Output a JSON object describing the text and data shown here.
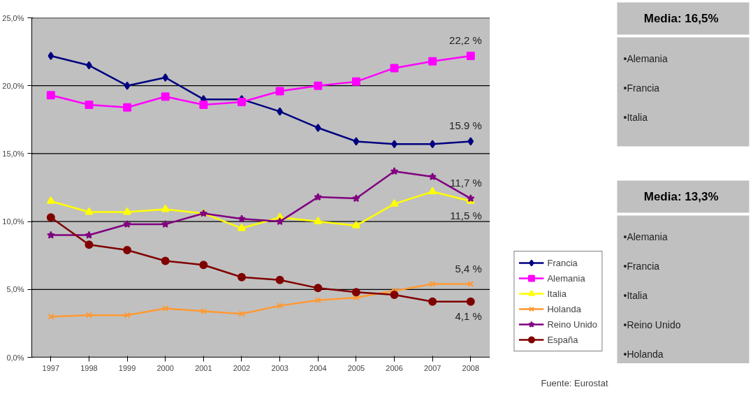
{
  "chart_data": [
    {
      "type": "line",
      "categories": [
        "1997",
        "1998",
        "1999",
        "2000",
        "2001",
        "2002",
        "2003",
        "2004",
        "2005",
        "2006",
        "2007",
        "2008"
      ],
      "ylim": [
        0,
        25
      ],
      "yticks": [
        {
          "value": 0,
          "label": "0,0%"
        },
        {
          "value": 5,
          "label": "5,0%"
        },
        {
          "value": 10,
          "label": "10,0%"
        },
        {
          "value": 15,
          "label": "15,0%"
        },
        {
          "value": 20,
          "label": "20,0%"
        },
        {
          "value": 25,
          "label": "25,0%"
        }
      ],
      "grid": "y",
      "legend": "bottom right",
      "series": [
        {
          "name": "Francia",
          "color": "#000080",
          "marker": "diamond",
          "values": [
            22.2,
            21.5,
            20.0,
            20.6,
            19.0,
            19.0,
            18.1,
            16.9,
            15.9,
            15.7,
            15.7,
            15.9
          ]
        },
        {
          "name": "Alemania",
          "color": "#ff00ff",
          "marker": "square",
          "values": [
            19.3,
            18.6,
            18.4,
            19.2,
            18.6,
            18.8,
            19.6,
            20.0,
            20.3,
            21.3,
            21.8,
            22.2
          ]
        },
        {
          "name": "Italia",
          "color": "#ffff00",
          "marker": "triangle",
          "values": [
            11.5,
            10.7,
            10.7,
            10.9,
            10.6,
            9.5,
            10.3,
            10.0,
            9.7,
            11.3,
            12.2,
            11.5
          ]
        },
        {
          "name": "Holanda",
          "color": "#ff9933",
          "marker": "cross",
          "values": [
            3.0,
            3.1,
            3.1,
            3.6,
            3.4,
            3.2,
            3.8,
            4.2,
            4.4,
            4.9,
            5.4,
            5.4
          ]
        },
        {
          "name": "Reino Unido",
          "color": "#800080",
          "marker": "star",
          "values": [
            9.0,
            9.0,
            9.8,
            9.8,
            10.6,
            10.2,
            10.0,
            11.8,
            11.7,
            13.7,
            13.3,
            11.7
          ]
        },
        {
          "name": "España",
          "color": "#800000",
          "marker": "circle",
          "values": [
            10.3,
            8.3,
            7.9,
            7.1,
            6.8,
            5.9,
            5.7,
            5.1,
            4.8,
            4.6,
            4.1,
            4.1
          ]
        }
      ],
      "annotations": [
        {
          "text": "22,2 %",
          "x": "2008",
          "y": 22.2
        },
        {
          "text": "15.9 %",
          "x": "2008",
          "y": 15.9
        },
        {
          "text": "11,7 %",
          "x": "2008",
          "y": 11.7
        },
        {
          "text": "11,5 %",
          "x": "2008",
          "y": 11.5
        },
        {
          "text": "5,4 %",
          "x": "2008",
          "y": 5.4
        },
        {
          "text": "4,1 %",
          "x": "2008",
          "y": 4.1
        },
        "Fuente: Eurostat"
      ]
    },
    {
      "type": "other",
      "title": "Media:  16,5%",
      "annotations": [
        "•Alemania",
        "•Francia",
        "•Italia"
      ]
    },
    {
      "type": "other",
      "title": "Media:  13,3%",
      "annotations": [
        "•Alemania",
        "•Francia",
        "•Italia",
        "•Reino Unido",
        "•Holanda"
      ]
    }
  ]
}
